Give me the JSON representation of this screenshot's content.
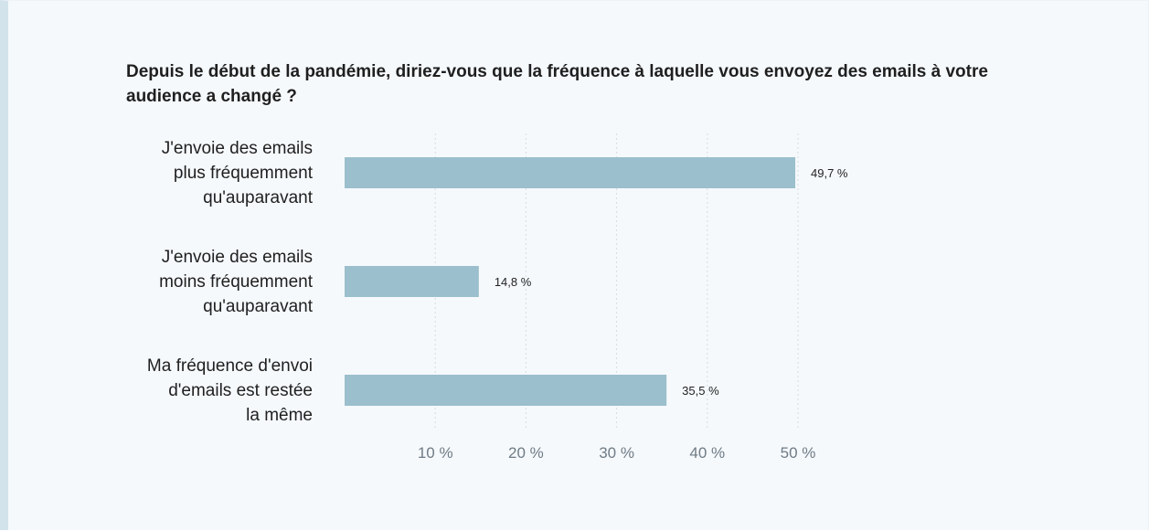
{
  "chart_data": {
    "type": "bar",
    "orientation": "horizontal",
    "title": "Depuis le début de la pandémie, diriez-vous que la fréquence à laquelle vous envoyez des emails à votre audience a changé ?",
    "categories": [
      [
        "J'envoie des emails",
        "plus fréquemment",
        "qu'auparavant"
      ],
      [
        "J'envoie des emails",
        "moins fréquemment",
        "qu'auparavant"
      ],
      [
        "Ma fréquence d'envoi",
        "d'emails est restée",
        "la même"
      ]
    ],
    "values": [
      49.7,
      14.8,
      35.5
    ],
    "value_labels": [
      "49,7 %",
      "14,8 %",
      "35,5 %"
    ],
    "x_ticks": [
      10,
      20,
      30,
      40,
      50
    ],
    "x_tick_labels": [
      "10 %",
      "20 %",
      "30 %",
      "40 %",
      "50 %"
    ],
    "xlim": [
      0,
      50
    ],
    "grid": "vertical dotted",
    "bar_color": "#9bbfcc",
    "xlabel": "",
    "ylabel": ""
  }
}
